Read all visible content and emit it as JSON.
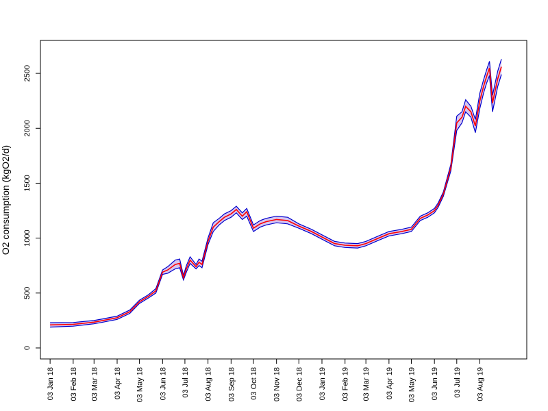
{
  "chart_data": {
    "type": "line",
    "title": "",
    "xlabel": "",
    "ylabel": "O2 consumption (kgO2/d)",
    "ylim": [
      -100,
      2800
    ],
    "xlim": [
      "2017-12-21",
      "2019-10-05"
    ],
    "y_ticks": [
      0,
      500,
      1000,
      1500,
      2000,
      2500
    ],
    "x_ticks": [
      {
        "label": "03 Jan 18",
        "date": "2018-01-03"
      },
      {
        "label": "03 Feb 18",
        "date": "2018-02-03"
      },
      {
        "label": "03 Mar 18",
        "date": "2018-03-03"
      },
      {
        "label": "03 Apr 18",
        "date": "2018-04-03"
      },
      {
        "label": "03 May 18",
        "date": "2018-05-03"
      },
      {
        "label": "03 Jun 18",
        "date": "2018-06-03"
      },
      {
        "label": "03 Jul 18",
        "date": "2018-07-03"
      },
      {
        "label": "03 Aug 18",
        "date": "2018-08-03"
      },
      {
        "label": "03 Sep 18",
        "date": "2018-09-03"
      },
      {
        "label": "03 Oct 18",
        "date": "2018-10-03"
      },
      {
        "label": "03 Nov 18",
        "date": "2018-11-03"
      },
      {
        "label": "03 Dec 18",
        "date": "2018-12-03"
      },
      {
        "label": "03 Jan 19",
        "date": "2019-01-03"
      },
      {
        "label": "03 Feb 19",
        "date": "2019-02-03"
      },
      {
        "label": "03 Mar 19",
        "date": "2019-03-03"
      },
      {
        "label": "03 Apr 19",
        "date": "2019-04-03"
      },
      {
        "label": "03 May 19",
        "date": "2019-05-03"
      },
      {
        "label": "03 Jun 19",
        "date": "2019-06-03"
      },
      {
        "label": "03 Jul 19",
        "date": "2019-07-03"
      },
      {
        "label": "03 Aug 19",
        "date": "2019-08-03"
      }
    ],
    "band_halfwidth": 18,
    "colors": {
      "estimate": "#ff0000",
      "bounds": "#0000cc"
    },
    "series": [
      {
        "x": [
          "2018-01-03",
          "2018-02-03",
          "2018-03-03",
          "2018-03-15",
          "2018-04-03",
          "2018-04-20",
          "2018-05-03",
          "2018-05-15",
          "2018-05-25",
          "2018-06-03",
          "2018-06-10",
          "2018-06-20",
          "2018-06-26",
          "2018-07-01",
          "2018-07-05",
          "2018-07-10",
          "2018-07-18",
          "2018-07-22",
          "2018-07-26",
          "2018-08-03",
          "2018-08-10",
          "2018-08-18",
          "2018-08-25",
          "2018-09-03",
          "2018-09-10",
          "2018-09-18",
          "2018-09-24",
          "2018-10-03",
          "2018-10-12",
          "2018-10-20",
          "2018-11-03",
          "2018-11-18",
          "2018-12-03",
          "2018-12-20",
          "2019-01-03",
          "2019-01-20",
          "2019-02-03",
          "2019-02-20",
          "2019-03-03",
          "2019-03-20",
          "2019-04-03",
          "2019-04-20",
          "2019-05-03",
          "2019-05-15",
          "2019-05-25",
          "2019-06-03",
          "2019-06-08",
          "2019-06-15",
          "2019-06-25",
          "2019-07-03",
          "2019-07-10",
          "2019-07-15",
          "2019-07-22",
          "2019-07-28",
          "2019-08-03",
          "2019-08-08",
          "2019-08-12",
          "2019-08-16",
          "2019-08-20",
          "2019-08-27",
          "2019-09-01"
        ],
        "y": [
          210,
          215,
          235,
          250,
          275,
          330,
          420,
          470,
          520,
          690,
          710,
          760,
          770,
          640,
          720,
          800,
          740,
          780,
          760,
          970,
          1100,
          1150,
          1190,
          1220,
          1260,
          1200,
          1240,
          1090,
          1130,
          1150,
          1170,
          1160,
          1110,
          1060,
          1010,
          950,
          935,
          930,
          950,
          1000,
          1040,
          1060,
          1080,
          1180,
          1210,
          1250,
          1300,
          1400,
          1640,
          2050,
          2100,
          2200,
          2150,
          2020,
          2250,
          2380,
          2470,
          2550,
          2230,
          2450,
          2560
        ],
        "lower": [
          190,
          198,
          220,
          235,
          260,
          315,
          405,
          455,
          500,
          670,
          680,
          720,
          730,
          620,
          690,
          770,
          720,
          750,
          730,
          940,
          1060,
          1120,
          1160,
          1190,
          1230,
          1170,
          1200,
          1060,
          1100,
          1120,
          1140,
          1130,
          1090,
          1040,
          990,
          930,
          915,
          910,
          930,
          980,
          1020,
          1040,
          1060,
          1160,
          1190,
          1230,
          1280,
          1380,
          1610,
          1980,
          2050,
          2150,
          2100,
          1960,
          2180,
          2320,
          2410,
          2480,
          2150,
          2380,
          2490
        ],
        "upper": [
          230,
          232,
          250,
          265,
          290,
          345,
          435,
          485,
          540,
          710,
          740,
          800,
          810,
          660,
          750,
          830,
          760,
          810,
          790,
          1000,
          1140,
          1180,
          1220,
          1250,
          1290,
          1230,
          1270,
          1120,
          1160,
          1180,
          1200,
          1190,
          1130,
          1080,
          1030,
          970,
          955,
          950,
          970,
          1020,
          1060,
          1080,
          1100,
          1200,
          1230,
          1270,
          1320,
          1420,
          1670,
          2110,
          2150,
          2260,
          2200,
          2080,
          2320,
          2440,
          2530,
          2610,
          2300,
          2520,
          2630
        ]
      }
    ]
  }
}
